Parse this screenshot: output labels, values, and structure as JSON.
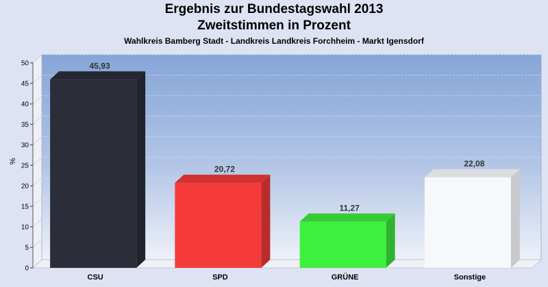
{
  "chart_data": {
    "type": "bar",
    "title": "Ergebnis zur Bundestagswahl 2013",
    "subtitle": "Zweitstimmen in Prozent",
    "subtitle2": "Wahlkreis Bamberg Stadt - Landkreis Landkreis Forchheim - Markt Igensdorf",
    "ylabel": "%",
    "ylim": [
      0,
      50
    ],
    "yticks": [
      0,
      5,
      10,
      15,
      20,
      25,
      30,
      35,
      40,
      45,
      50
    ],
    "categories": [
      "CSU",
      "SPD",
      "GRÜNE",
      "Sonstige"
    ],
    "values": [
      45.93,
      20.72,
      11.27,
      22.08
    ],
    "labels": [
      "45,93",
      "20,72",
      "11,27",
      "22,08"
    ],
    "colors": [
      "#2b2e38",
      "#f53a3a",
      "#3ef03e",
      "#f7f8fb"
    ],
    "grid": true
  }
}
